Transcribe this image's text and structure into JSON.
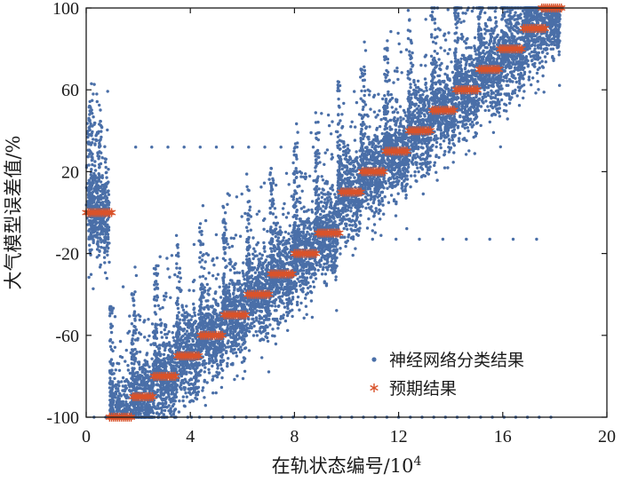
{
  "chart_data": {
    "type": "scatter",
    "xlabel": "在轨状态编号/10",
    "xlabel_sup": "4",
    "ylabel": "大气模型误差值/%",
    "xlim": [
      0,
      20
    ],
    "ylim": [
      -100,
      100
    ],
    "xticks": [
      0,
      4,
      8,
      12,
      16,
      20
    ],
    "yticks": [
      -100,
      -60,
      -20,
      20,
      60,
      100
    ],
    "grid": false,
    "legend_position": "bottom-right",
    "colors": {
      "network": "#4a6fa8",
      "expected": "#d9532b"
    },
    "series": [
      {
        "name": "神经网络分类结果",
        "marker": "dot",
        "cluster_centers": [
          {
            "x": 0.5,
            "y": 0
          },
          {
            "x": 1.3,
            "y": -100
          },
          {
            "x": 2.2,
            "y": -90
          },
          {
            "x": 3.0,
            "y": -80
          },
          {
            "x": 3.9,
            "y": -70
          },
          {
            "x": 4.8,
            "y": -60
          },
          {
            "x": 5.7,
            "y": -50
          },
          {
            "x": 6.6,
            "y": -40
          },
          {
            "x": 7.5,
            "y": -30
          },
          {
            "x": 8.4,
            "y": -20
          },
          {
            "x": 9.2,
            "y": -10
          },
          {
            "x": 10.1,
            "y": 10
          },
          {
            "x": 11.0,
            "y": 20
          },
          {
            "x": 11.9,
            "y": 30
          },
          {
            "x": 12.8,
            "y": 40
          },
          {
            "x": 13.7,
            "y": 50
          },
          {
            "x": 14.6,
            "y": 60
          },
          {
            "x": 15.5,
            "y": 70
          },
          {
            "x": 16.4,
            "y": 80
          },
          {
            "x": 17.3,
            "y": 90
          },
          {
            "x": 18.1,
            "y": 100
          }
        ],
        "scatter_range": [
          -100,
          100
        ]
      },
      {
        "name": "预期结果",
        "marker": "asterisk",
        "segments": [
          {
            "x0": 0.0,
            "x1": 1.0,
            "y": 0
          },
          {
            "x0": 0.9,
            "x1": 1.8,
            "y": -100
          },
          {
            "x0": 1.8,
            "x1": 2.6,
            "y": -90
          },
          {
            "x0": 2.6,
            "x1": 3.5,
            "y": -80
          },
          {
            "x0": 3.5,
            "x1": 4.4,
            "y": -70
          },
          {
            "x0": 4.4,
            "x1": 5.3,
            "y": -60
          },
          {
            "x0": 5.3,
            "x1": 6.2,
            "y": -50
          },
          {
            "x0": 6.2,
            "x1": 7.1,
            "y": -40
          },
          {
            "x0": 7.1,
            "x1": 8.0,
            "y": -30
          },
          {
            "x0": 8.0,
            "x1": 8.9,
            "y": -20
          },
          {
            "x0": 8.9,
            "x1": 9.8,
            "y": -10
          },
          {
            "x0": 9.8,
            "x1": 10.6,
            "y": 10
          },
          {
            "x0": 10.6,
            "x1": 11.5,
            "y": 20
          },
          {
            "x0": 11.5,
            "x1": 12.4,
            "y": 30
          },
          {
            "x0": 12.4,
            "x1": 13.3,
            "y": 40
          },
          {
            "x0": 13.3,
            "x1": 14.2,
            "y": 50
          },
          {
            "x0": 14.2,
            "x1": 15.1,
            "y": 60
          },
          {
            "x0": 15.1,
            "x1": 15.9,
            "y": 70
          },
          {
            "x0": 15.9,
            "x1": 16.8,
            "y": 80
          },
          {
            "x0": 16.8,
            "x1": 17.7,
            "y": 90
          },
          {
            "x0": 17.5,
            "x1": 18.3,
            "y": 100
          }
        ]
      }
    ]
  }
}
